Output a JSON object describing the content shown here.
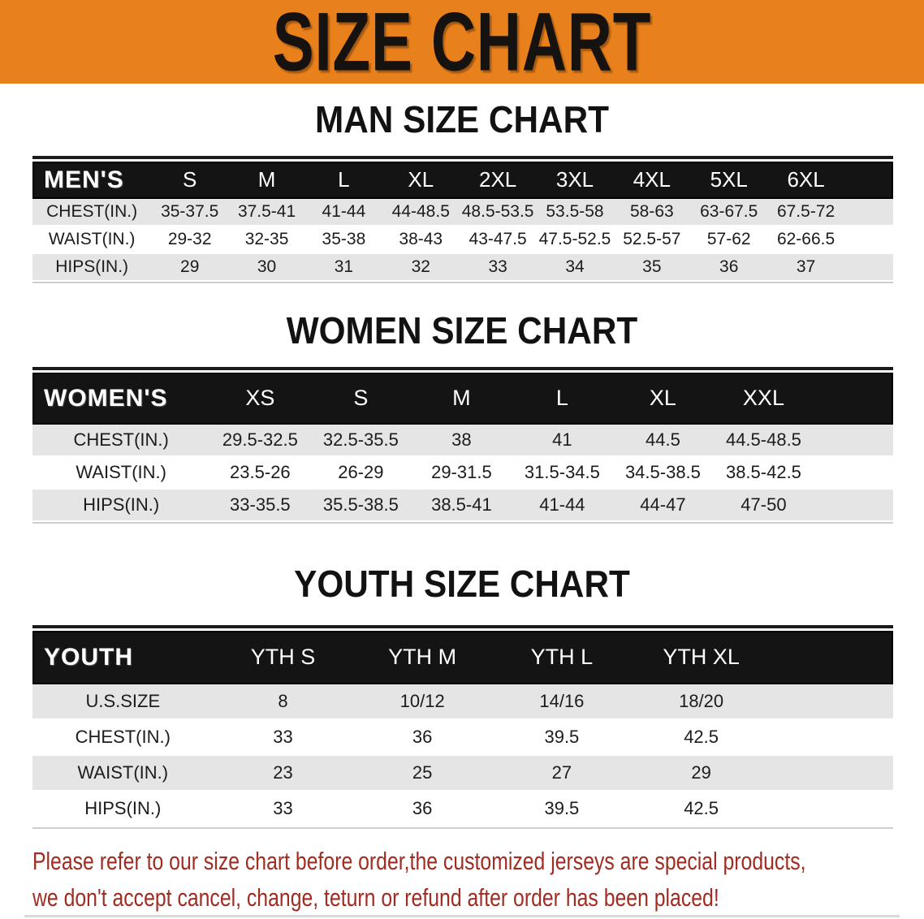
{
  "banner": {
    "title": "SIZE CHART"
  },
  "colors": {
    "banner_bg": "#e8811c",
    "table_header_bg": "#141414",
    "row_alt_bg": "#e5e5e5",
    "footer_text": "#a02c22"
  },
  "men": {
    "section_title": "MAN SIZE CHART",
    "corner_label": "MEN'S",
    "sizes": [
      "S",
      "M",
      "L",
      "XL",
      "2XL",
      "3XL",
      "4XL",
      "5XL",
      "6XL"
    ],
    "rows": [
      {
        "label": "CHEST(IN.)",
        "values": [
          "35-37.5",
          "37.5-41",
          "41-44",
          "44-48.5",
          "48.5-53.5",
          "53.5-58",
          "58-63",
          "63-67.5",
          "67.5-72"
        ]
      },
      {
        "label": "WAIST(IN.)",
        "values": [
          "29-32",
          "32-35",
          "35-38",
          "38-43",
          "43-47.5",
          "47.5-52.5",
          "52.5-57",
          "57-62",
          "62-66.5"
        ]
      },
      {
        "label": "HIPS(IN.)",
        "values": [
          "29",
          "30",
          "31",
          "32",
          "33",
          "34",
          "35",
          "36",
          "37"
        ]
      }
    ]
  },
  "women": {
    "section_title": "WOMEN SIZE CHART",
    "corner_label": "WOMEN'S",
    "sizes": [
      "XS",
      "S",
      "M",
      "L",
      "XL",
      "XXL"
    ],
    "rows": [
      {
        "label": "CHEST(IN.)",
        "values": [
          "29.5-32.5",
          "32.5-35.5",
          "38",
          "41",
          "44.5",
          "44.5-48.5"
        ]
      },
      {
        "label": "WAIST(IN.)",
        "values": [
          "23.5-26",
          "26-29",
          "29-31.5",
          "31.5-34.5",
          "34.5-38.5",
          "38.5-42.5"
        ]
      },
      {
        "label": "HIPS(IN.)",
        "values": [
          "33-35.5",
          "35.5-38.5",
          "38.5-41",
          "41-44",
          "44-47",
          "47-50"
        ]
      }
    ]
  },
  "youth": {
    "section_title": "YOUTH SIZE CHART",
    "corner_label": "YOUTH",
    "sizes": [
      "YTH S",
      "YTH M",
      "YTH L",
      "YTH XL"
    ],
    "rows": [
      {
        "label": "U.S.SIZE",
        "values": [
          "8",
          "10/12",
          "14/16",
          "18/20"
        ]
      },
      {
        "label": "CHEST(IN.)",
        "values": [
          "33",
          "36",
          "39.5",
          "42.5"
        ]
      },
      {
        "label": "WAIST(IN.)",
        "values": [
          "23",
          "25",
          "27",
          "29"
        ]
      },
      {
        "label": "HIPS(IN.)",
        "values": [
          "33",
          "36",
          "39.5",
          "42.5"
        ]
      }
    ]
  },
  "footer": {
    "line1": "Please refer to our size chart before order,the customized jerseys are special products,",
    "line2": "we don't accept cancel, change, teturn or refund after order has been placed!"
  }
}
